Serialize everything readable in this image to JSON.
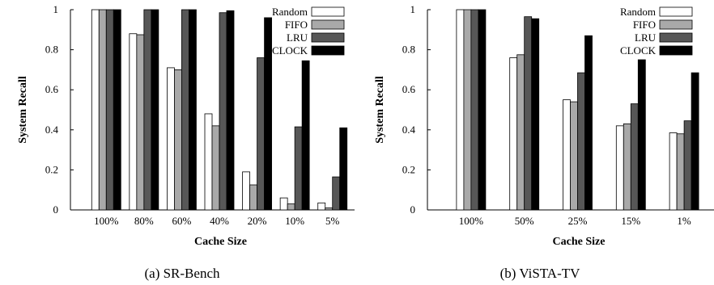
{
  "series_colors": [
    "#ffffff",
    "#a9a9a9",
    "#575757",
    "#000000"
  ],
  "chart_data": [
    {
      "type": "bar",
      "caption": "(a) SR-Bench",
      "xlabel": "Cache Size",
      "ylabel": "System Recall",
      "ylim": [
        0,
        1
      ],
      "yticks": [
        "0",
        "0.2",
        "0.4",
        "0.6",
        "0.8",
        "1"
      ],
      "legend_position": "top-right",
      "categories": [
        "100%",
        "80%",
        "60%",
        "40%",
        "20%",
        "10%",
        "5%"
      ],
      "series": [
        {
          "name": "Random",
          "values": [
            1.0,
            0.88,
            0.71,
            0.48,
            0.19,
            0.06,
            0.035
          ]
        },
        {
          "name": "FIFO",
          "values": [
            1.0,
            0.875,
            0.7,
            0.42,
            0.125,
            0.03,
            0.01
          ]
        },
        {
          "name": "LRU",
          "values": [
            1.0,
            1.0,
            1.0,
            0.985,
            0.76,
            0.415,
            0.165
          ]
        },
        {
          "name": "CLOCK",
          "values": [
            1.0,
            1.0,
            1.0,
            0.995,
            0.96,
            0.745,
            0.41
          ]
        }
      ]
    },
    {
      "type": "bar",
      "caption": "(b) ViSTA-TV",
      "xlabel": "Cache Size",
      "ylabel": "System Recall",
      "ylim": [
        0,
        1
      ],
      "yticks": [
        "0",
        "0.2",
        "0.4",
        "0.6",
        "0.8",
        "1"
      ],
      "legend_position": "top-right",
      "categories": [
        "100%",
        "50%",
        "25%",
        "15%",
        "1%"
      ],
      "series": [
        {
          "name": "Random",
          "values": [
            1.0,
            0.76,
            0.55,
            0.42,
            0.385
          ]
        },
        {
          "name": "FIFO",
          "values": [
            1.0,
            0.775,
            0.54,
            0.43,
            0.38
          ]
        },
        {
          "name": "LRU",
          "values": [
            1.0,
            0.965,
            0.685,
            0.53,
            0.445
          ]
        },
        {
          "name": "CLOCK",
          "values": [
            1.0,
            0.955,
            0.87,
            0.75,
            0.685
          ]
        }
      ]
    }
  ]
}
